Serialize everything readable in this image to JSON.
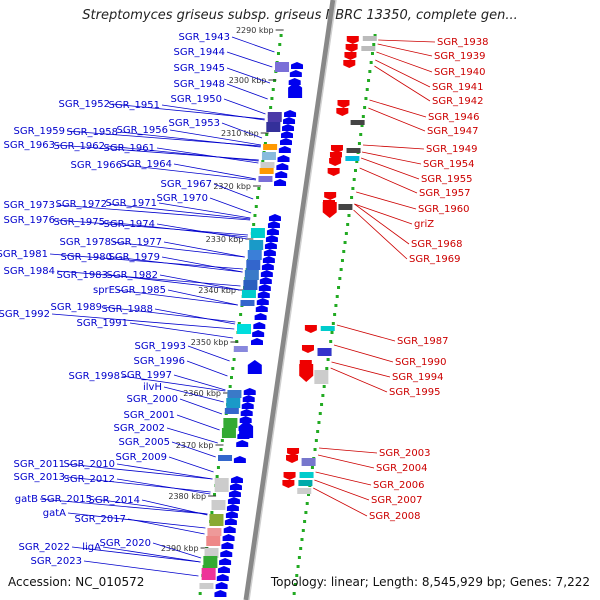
{
  "title": "Streptomyces griseus subsp. griseus NBRC 13350, complete gen...",
  "footer": {
    "accession": "Accession: NC_010572",
    "stats": "Topology: linear; Length: 8,545,929 bp; Genes: 7,222"
  },
  "colors": {
    "forward_gene": "#0000ee",
    "reverse_gene": "#ee0000",
    "left_label": "#0000cc",
    "right_label": "#cc0000",
    "backbone": "#888888",
    "tick_dots": "#22aa22"
  },
  "ticks": [
    "2290 kbp",
    "2300 kbp",
    "2310 kbp",
    "2320 kbp",
    "2330 kbp",
    "2340 kbp",
    "2350 kbp",
    "2360 kbp",
    "2370 kbp",
    "2380 kbp",
    "2390 kbp"
  ],
  "left_labels": [
    "SGR_1943",
    "SGR_1944",
    "SGR_1945",
    "SGR_1948",
    "SGR_1950",
    "SGR_1952",
    "SGR_1951",
    "SGR_1953",
    "SGR_1959",
    "SGR_1958",
    "SGR_1956",
    "SGR_1963",
    "SGR_1962",
    "SGR_1961",
    "SGR_1966",
    "SGR_1964",
    "SGR_1967",
    "SGR_1970",
    "SGR_1973",
    "SGR_1972",
    "SGR_1971",
    "SGR_1976",
    "SGR_1975",
    "SGR_1974",
    "SGR_1978",
    "SGR_1977",
    "SGR_1981",
    "SGR_1980",
    "SGR_1979",
    "SGR_1984",
    "SGR_1983",
    "SGR_1982",
    "sprE",
    "SGR_1985",
    "SGR_1989",
    "SGR_1988",
    "SGR_1992",
    "SGR_1991",
    "SGR_1993",
    "SGR_1996",
    "SGR_1998",
    "SGR_1997",
    "ilvH",
    "SGR_2000",
    "SGR_2001",
    "SGR_2002",
    "SGR_2005",
    "SGR_2009",
    "SGR_2011",
    "SGR_2010",
    "SGR_2013",
    "SGR_2012",
    "gatB",
    "SGR_2015",
    "SGR_2014",
    "gatA",
    "SGR_2017",
    "SGR_2020",
    "SGR_2022",
    "ligA",
    "SGR_2023"
  ],
  "right_labels": [
    "SGR_1938",
    "SGR_1939",
    "SGR_1940",
    "SGR_1941",
    "SGR_1942",
    "SGR_1946",
    "SGR_1947",
    "SGR_1949",
    "SGR_1954",
    "SGR_1955",
    "SGR_1957",
    "SGR_1960",
    "griZ",
    "SGR_1968",
    "SGR_1969",
    "SGR_1987",
    "SGR_1990",
    "SGR_1994",
    "SGR_1995",
    "SGR_2003",
    "SGR_2004",
    "SGR_2006",
    "SGR_2007",
    "SGR_2008"
  ]
}
